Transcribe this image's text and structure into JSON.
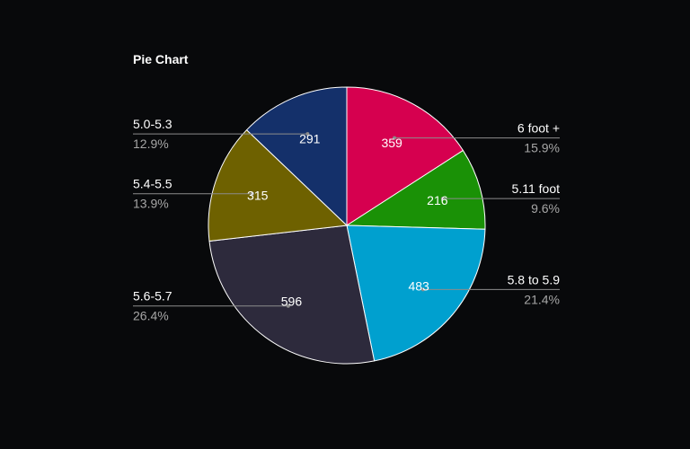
{
  "chart_data": {
    "type": "pie",
    "title": "Pie Chart",
    "slices": [
      {
        "label": "6 foot +",
        "value": 359,
        "percent": "15.9%",
        "color": "#d6004f"
      },
      {
        "label": "5.11 foot",
        "value": 216,
        "percent": "9.6%",
        "color": "#1a9106"
      },
      {
        "label": "5.8 to 5.9",
        "value": 483,
        "percent": "21.4%",
        "color": "#00a0cf"
      },
      {
        "label": "5.6-5.7",
        "value": 596,
        "percent": "26.4%",
        "color": "#2d2a3c"
      },
      {
        "label": "5.4-5.5",
        "value": 315,
        "percent": "13.9%",
        "color": "#6e6100"
      },
      {
        "label": "5.0-5.3",
        "value": 291,
        "percent": "12.9%",
        "color": "#14306a"
      }
    ],
    "start_angle": "top",
    "direction": "clockwise",
    "slice_border_color": "#ffffff",
    "leader_line_color": "#8c8c8c",
    "background": "#08090b"
  }
}
